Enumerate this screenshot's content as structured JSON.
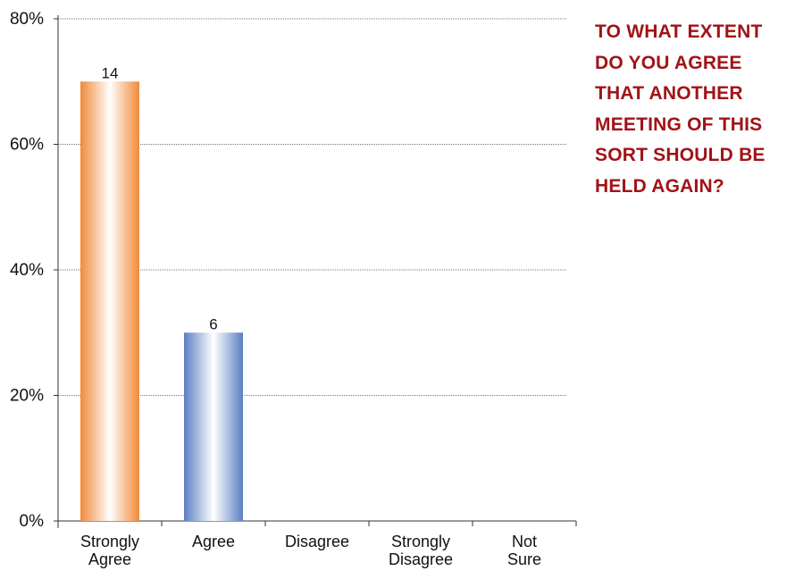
{
  "question": "TO WHAT EXTENT\nDO YOU AGREE\nTHAT ANOTHER\nMEETING OF THIS\nSORT SHOULD BE\nHELD AGAIN?",
  "colors": {
    "question_text": "#a01318",
    "grid": "#777777",
    "axis": "#333333"
  },
  "chart_data": {
    "type": "bar",
    "categories": [
      [
        "Strongly",
        "Agree"
      ],
      [
        "Agree"
      ],
      [
        "Disagree"
      ],
      [
        "Strongly",
        "Disagree"
      ],
      [
        "Not",
        "Sure"
      ]
    ],
    "values": [
      70,
      30,
      0,
      0,
      0
    ],
    "value_labels": [
      "14",
      "6",
      "",
      "",
      ""
    ],
    "bar_colors": [
      {
        "edge": "#f08a3a",
        "center": "#ffffff"
      },
      {
        "edge": "#5b7fc4",
        "center": "#ffffff"
      },
      null,
      null,
      null
    ],
    "y_ticks": [
      "0%",
      "20%",
      "40%",
      "60%",
      "80%"
    ],
    "y_tick_values": [
      0,
      20,
      40,
      60,
      80
    ],
    "ylim": [
      0,
      80
    ],
    "grid": true,
    "grid_style": "dotted",
    "legend": false,
    "title": "",
    "xlabel": "",
    "ylabel": ""
  }
}
